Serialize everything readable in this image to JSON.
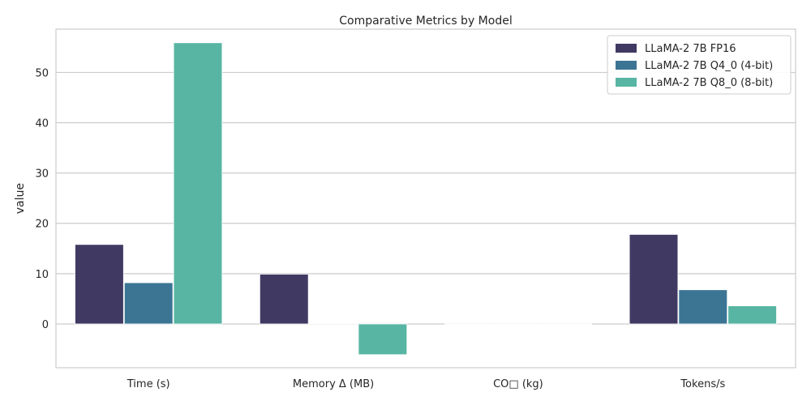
{
  "chart_data": {
    "type": "bar",
    "title": "Comparative Metrics by Model",
    "xlabel": "",
    "ylabel": "value",
    "categories": [
      "Time (s)",
      "Memory Δ (MB)",
      "CO□ (kg)",
      "Tokens/s"
    ],
    "series": [
      {
        "name": "LLaMA-2 7B FP16",
        "color": "#403a63",
        "values": [
          15.8,
          9.9,
          0.0,
          17.8
        ]
      },
      {
        "name": "LLaMA-2 7B Q4_0 (4-bit)",
        "color": "#3c7594",
        "values": [
          8.2,
          0.1,
          0.0,
          6.8
        ]
      },
      {
        "name": "LLaMA-2 7B Q8_0 (8-bit)",
        "color": "#58b5a3",
        "values": [
          55.9,
          -6.1,
          0.0,
          3.6
        ]
      }
    ],
    "ylim": [
      -8.7,
      58.6
    ],
    "yticks": [
      0,
      10,
      20,
      30,
      40,
      50
    ],
    "grid": true,
    "legend_position": "top-right"
  }
}
